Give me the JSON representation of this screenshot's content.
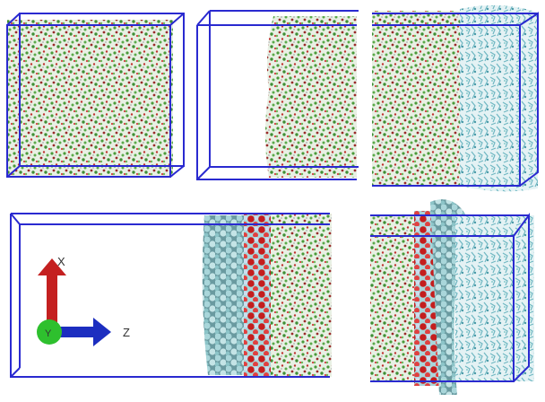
{
  "axes": {
    "x_label": "X",
    "y_label": "Y",
    "z_label": "Z"
  }
}
